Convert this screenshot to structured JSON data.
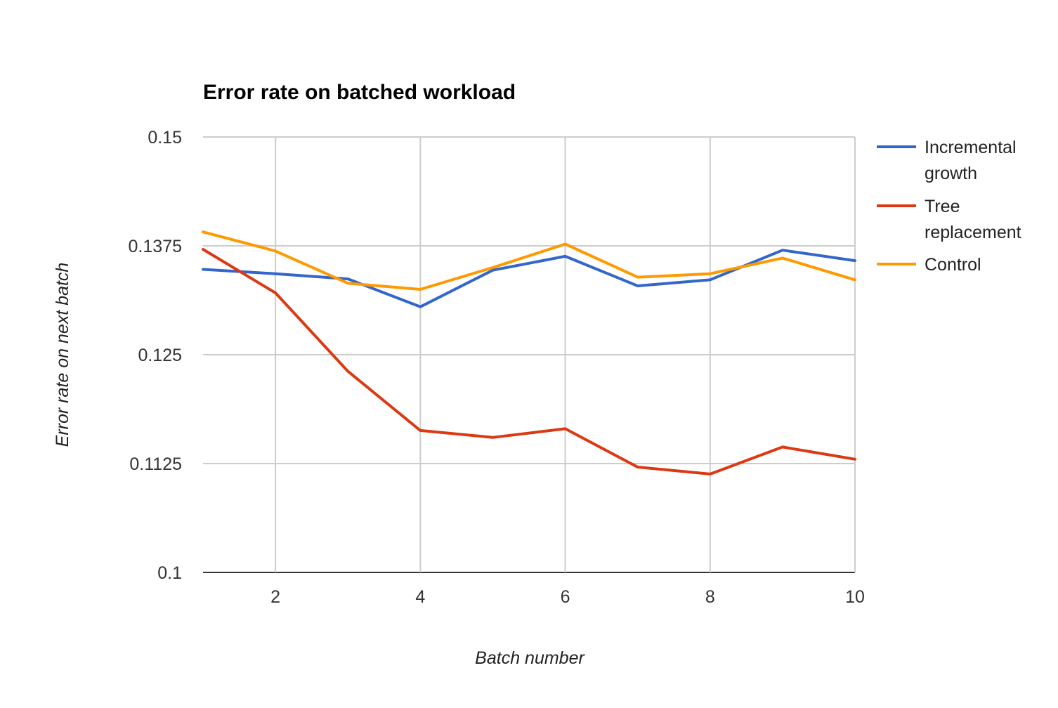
{
  "chart_data": {
    "type": "line",
    "title": "Error rate on batched workload",
    "xlabel": "Batch number",
    "ylabel": "Error rate on next batch",
    "x": [
      1,
      2,
      3,
      4,
      5,
      6,
      7,
      8,
      9,
      10
    ],
    "xlim": [
      1,
      10
    ],
    "ylim": [
      0.1,
      0.15
    ],
    "x_ticks": [
      2,
      4,
      6,
      8,
      10
    ],
    "x_tick_labels": [
      "2",
      "4",
      "6",
      "8",
      "10"
    ],
    "y_ticks": [
      0.1,
      0.1125,
      0.125,
      0.1375,
      0.15
    ],
    "y_tick_labels": [
      "0.1",
      "0.1125",
      "0.125",
      "0.1375",
      "0.15"
    ],
    "grid": true,
    "legend_position": "right",
    "series": [
      {
        "name": "Incremental growth",
        "legend_lines": [
          "Incremental",
          "growth"
        ],
        "color": "#3366cc",
        "values": [
          0.1348,
          0.1343,
          0.1337,
          0.1305,
          0.1347,
          0.1363,
          0.1329,
          0.1336,
          0.137,
          0.1358
        ]
      },
      {
        "name": "Tree replacement",
        "legend_lines": [
          "Tree",
          "replacement"
        ],
        "color": "#dc3912",
        "values": [
          0.1371,
          0.1321,
          0.1231,
          0.1163,
          0.1155,
          0.1165,
          0.1121,
          0.1113,
          0.1144,
          0.113
        ]
      },
      {
        "name": "Control",
        "legend_lines": [
          "Control"
        ],
        "color": "#ff9900",
        "values": [
          0.1391,
          0.1369,
          0.1332,
          0.1325,
          0.135,
          0.1377,
          0.1339,
          0.1343,
          0.1361,
          0.1336
        ]
      }
    ]
  }
}
